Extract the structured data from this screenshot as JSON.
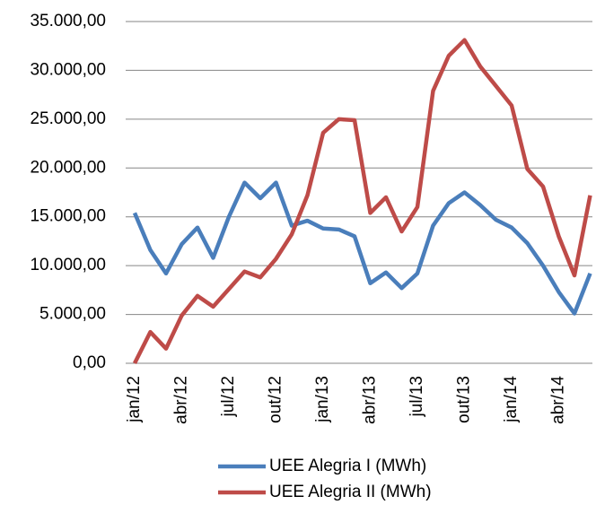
{
  "chart_data": {
    "type": "line",
    "categories": [
      "jan/12",
      null,
      null,
      "abr/12",
      null,
      null,
      "jul/12",
      null,
      null,
      "out/12",
      null,
      null,
      "jan/13",
      null,
      null,
      "abr/13",
      null,
      null,
      "jul/13",
      null,
      null,
      "out/13",
      null,
      null,
      "jan/14",
      null,
      null,
      "abr/14",
      null,
      null
    ],
    "series": [
      {
        "name": "UEE Alegria I (MWh)",
        "color": "#4a7ebb",
        "values": [
          15400,
          11600,
          9200,
          12200,
          13900,
          10800,
          15000,
          18500,
          16900,
          18500,
          14100,
          14600,
          13800,
          13700,
          13000,
          8200,
          9300,
          7700,
          9200,
          14100,
          16400,
          17500,
          16200,
          14700,
          13900,
          12300,
          10000,
          7300,
          5100,
          9200
        ]
      },
      {
        "name": "UEE Alegria II (MWh)",
        "color": "#be4b48",
        "values": [
          0,
          3200,
          1500,
          4900,
          6900,
          5800,
          7600,
          9400,
          8800,
          10700,
          13200,
          17200,
          23600,
          25000,
          24900,
          15400,
          17000,
          13500,
          16000,
          27900,
          31500,
          33100,
          30400,
          28400,
          26400,
          19900,
          18100,
          13000,
          9000,
          17200
        ]
      }
    ],
    "ylim": [
      0,
      35000
    ],
    "yticks": [
      {
        "value": 0,
        "label": "0,00"
      },
      {
        "value": 5000,
        "label": "5.000,00"
      },
      {
        "value": 10000,
        "label": "10.000,00"
      },
      {
        "value": 15000,
        "label": "15.000,00"
      },
      {
        "value": 20000,
        "label": "20.000,00"
      },
      {
        "value": 25000,
        "label": "25.000,00"
      },
      {
        "value": 30000,
        "label": "30.000,00"
      },
      {
        "value": 35000,
        "label": "35.000,00"
      }
    ],
    "grid": true,
    "legend": "bottom"
  }
}
